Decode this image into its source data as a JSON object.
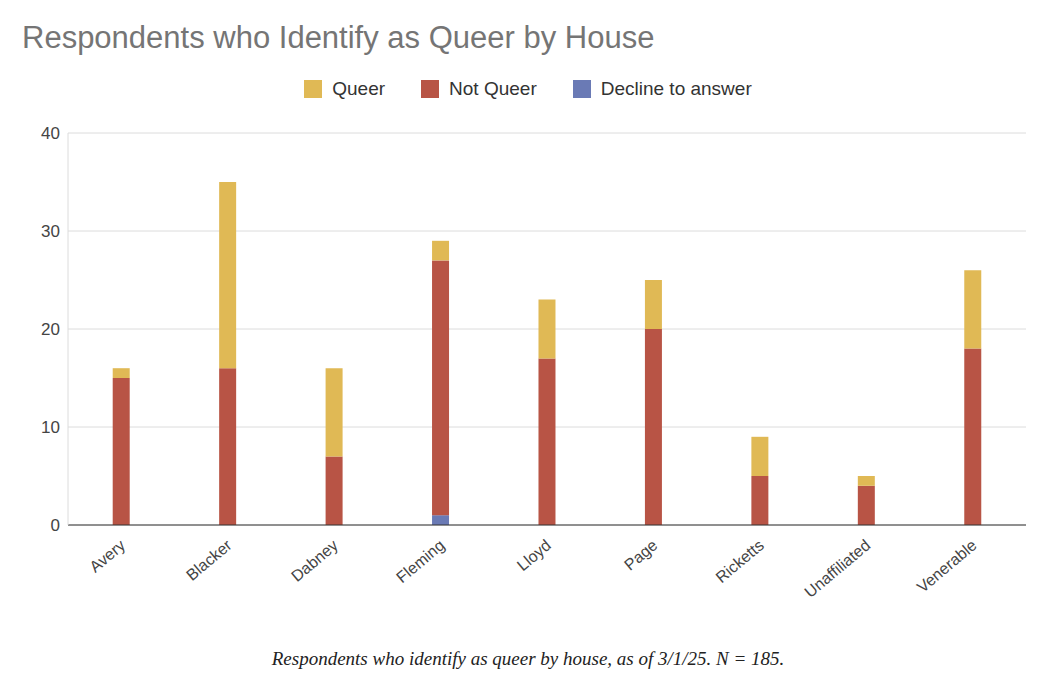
{
  "chart_data": {
    "type": "bar",
    "title": "Respondents who Identify as Queer by House",
    "caption": "Respondents who identify as queer by house, as of 3/1/25. N = 185.",
    "categories": [
      "Avery",
      "Blacker",
      "Dabney",
      "Fleming",
      "Lloyd",
      "Page",
      "Ricketts",
      "Unaffiliated",
      "Venerable"
    ],
    "series": [
      {
        "name": "Queer",
        "color": "#e0b955",
        "values": [
          1,
          19,
          9,
          2,
          6,
          5,
          4,
          1,
          8
        ]
      },
      {
        "name": "Not Queer",
        "color": "#b85445",
        "values": [
          15,
          16,
          7,
          26,
          17,
          20,
          5,
          4,
          18
        ]
      },
      {
        "name": "Decline to answer",
        "color": "#6a7ab5",
        "values": [
          0,
          0,
          0,
          1,
          0,
          0,
          0,
          0,
          0
        ]
      }
    ],
    "stacked": true,
    "ylim": [
      0,
      40
    ],
    "yticks": [
      0,
      10,
      20,
      30,
      40
    ],
    "grid": true,
    "legend": "top"
  }
}
